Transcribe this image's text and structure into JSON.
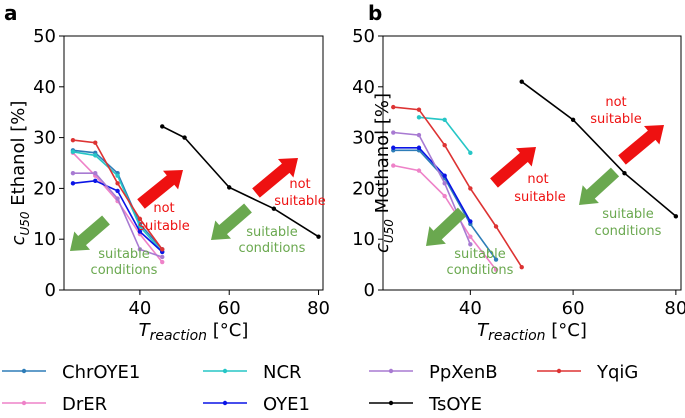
{
  "chart_data": [
    {
      "type": "line",
      "panel_label": "a",
      "ylabel_prefix": "c",
      "ylabel_sub": "U50",
      "ylabel_text": "Ethanol [%]",
      "xlabel_prefix": "T",
      "xlabel_sub": "reaction",
      "xlabel_unit": "[°C]",
      "xlim": [
        23,
        81
      ],
      "ylim": [
        0,
        50
      ],
      "xticks": [
        40,
        60,
        80
      ],
      "yticks": [
        0,
        10,
        20,
        30,
        40,
        50
      ],
      "series": [
        {
          "name": "ChrOYE1",
          "color": "#2e7db8",
          "x": [
            25,
            30,
            35,
            40,
            45
          ],
          "y": [
            27.5,
            27.0,
            23.0,
            13.0,
            8.0
          ]
        },
        {
          "name": "DrER",
          "color": "#ee82c8",
          "x": [
            25,
            30,
            35,
            40,
            45
          ],
          "y": [
            27.0,
            22.5,
            17.5,
            11.0,
            5.5
          ]
        },
        {
          "name": "NCR",
          "color": "#26c6c6",
          "x": [
            25,
            30,
            35,
            40,
            45
          ],
          "y": [
            27.2,
            26.5,
            22.5,
            12.5,
            7.5
          ]
        },
        {
          "name": "OYE1",
          "color": "#0a14e6",
          "x": [
            25,
            30,
            35,
            40,
            45
          ],
          "y": [
            21.0,
            21.5,
            19.5,
            11.5,
            7.5
          ]
        },
        {
          "name": "PpXenB",
          "color": "#a87ad2",
          "x": [
            25,
            30,
            35,
            40,
            45
          ],
          "y": [
            23.0,
            23.0,
            18.0,
            8.0,
            6.5
          ]
        },
        {
          "name": "TsOYE",
          "color": "#000000",
          "x": [
            45,
            50,
            60,
            70,
            80
          ],
          "y": [
            32.2,
            30.0,
            20.2,
            16.0,
            10.5
          ]
        },
        {
          "name": "YqiG",
          "color": "#dd3333",
          "x": [
            25,
            30,
            35,
            40,
            45
          ],
          "y": [
            29.5,
            29.0,
            21.0,
            14.0,
            8.0
          ]
        }
      ],
      "annotations": {
        "not_suitable": [
          "not",
          "suitable"
        ],
        "suitable": [
          "suitable",
          "conditions"
        ]
      }
    },
    {
      "type": "line",
      "panel_label": "b",
      "ylabel_prefix": "c",
      "ylabel_sub": "U50",
      "ylabel_text": "Methanol [%]",
      "xlabel_prefix": "T",
      "xlabel_sub": "reaction",
      "xlabel_unit": "[°C]",
      "xlim": [
        23,
        81
      ],
      "ylim": [
        0,
        50
      ],
      "xticks": [
        40,
        60,
        80
      ],
      "yticks": [
        0,
        10,
        20,
        30,
        40,
        50
      ],
      "series": [
        {
          "name": "ChrOYE1",
          "color": "#2e7db8",
          "x": [
            25,
            30,
            35,
            40,
            45
          ],
          "y": [
            27.5,
            27.5,
            22.0,
            13.0,
            6.0
          ]
        },
        {
          "name": "DrER",
          "color": "#ee82c8",
          "x": [
            25,
            30,
            35,
            40,
            45
          ],
          "y": [
            24.5,
            23.5,
            18.5,
            10.5,
            4.0
          ]
        },
        {
          "name": "NCR",
          "color": "#26c6c6",
          "x": [
            30,
            35,
            40
          ],
          "y": [
            34.0,
            33.5,
            27.0
          ]
        },
        {
          "name": "OYE1",
          "color": "#0a14e6",
          "x": [
            25,
            30,
            35,
            40
          ],
          "y": [
            28.0,
            28.0,
            22.5,
            13.5
          ]
        },
        {
          "name": "PpXenB",
          "color": "#a87ad2",
          "x": [
            25,
            30,
            35,
            40
          ],
          "y": [
            31.0,
            30.5,
            21.0,
            9.0
          ]
        },
        {
          "name": "TsOYE",
          "color": "#000000",
          "x": [
            50,
            60,
            70,
            80
          ],
          "y": [
            41.0,
            33.5,
            23.0,
            14.5
          ]
        },
        {
          "name": "YqiG",
          "color": "#dd3333",
          "x": [
            25,
            30,
            35,
            40,
            45,
            50
          ],
          "y": [
            36.0,
            35.5,
            28.5,
            20.0,
            12.5,
            4.5
          ]
        }
      ],
      "annotations": {
        "not_suitable": [
          "not",
          "suitable"
        ],
        "suitable": [
          "suitable",
          "conditions"
        ]
      }
    }
  ],
  "legend": [
    {
      "name": "ChrOYE1",
      "color": "#2e7db8"
    },
    {
      "name": "NCR",
      "color": "#26c6c6"
    },
    {
      "name": "PpXenB",
      "color": "#a87ad2"
    },
    {
      "name": "YqiG",
      "color": "#dd3333"
    },
    {
      "name": "DrER",
      "color": "#ee82c8"
    },
    {
      "name": "OYE1",
      "color": "#0a14e6"
    },
    {
      "name": "TsOYE",
      "color": "#000000"
    }
  ],
  "arrow_colors": {
    "not_suitable": "#ee1111",
    "suitable": "#6aa84f"
  }
}
